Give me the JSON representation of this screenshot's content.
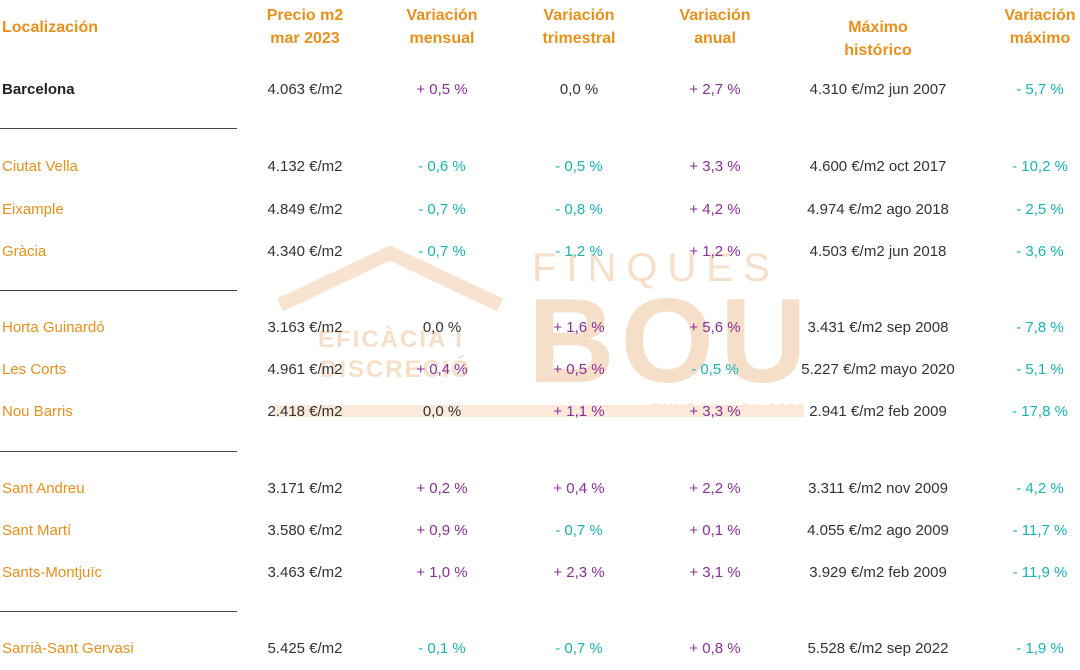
{
  "colors": {
    "accent": "#e8901a",
    "positive": "#8b2f97",
    "negative": "#18b3b3",
    "text": "#333333",
    "watermark": "#f6dfc8"
  },
  "watermark": {
    "line1": "FINQUES",
    "line2": "BOU",
    "line3": "EFICÀCIA I",
    "line4": "DISCRECIÓ",
    "line5": "FUNDADA EL 1990"
  },
  "headers": [
    "Localización",
    "Precio m2\nmar 2023",
    "Variación\nmensual",
    "Variación\ntrimestral",
    "Variación\nanual",
    "Máximo histórico",
    "Variación\nmáximo"
  ],
  "rows": [
    {
      "loc": "Barcelona",
      "price": "4.063 €/m2",
      "mensual": "+ 0,5 %",
      "trimestral": "0,0 %",
      "anual": "+ 2,7 %",
      "maximo": "4.310 €/m2 jun 2007",
      "var_max": "- 5,7 %"
    },
    {
      "loc": "Ciutat Vella",
      "price": "4.132 €/m2",
      "mensual": "- 0,6 %",
      "trimestral": "- 0,5 %",
      "anual": "+ 3,3 %",
      "maximo": "4.600 €/m2 oct 2017",
      "var_max": "- 10,2 %"
    },
    {
      "loc": "Eixample",
      "price": "4.849 €/m2",
      "mensual": "- 0,7 %",
      "trimestral": "- 0,8 %",
      "anual": "+ 4,2 %",
      "maximo": "4.974 €/m2 ago 2018",
      "var_max": "- 2,5 %"
    },
    {
      "loc": "Gràcia",
      "price": "4.340 €/m2",
      "mensual": "- 0,7 %",
      "trimestral": "- 1,2 %",
      "anual": "+ 1,2 %",
      "maximo": "4.503 €/m2 jun 2018",
      "var_max": "- 3,6 %"
    },
    {
      "loc": "Horta Guinardó",
      "price": "3.163 €/m2",
      "mensual": "0,0 %",
      "trimestral": "+ 1,6 %",
      "anual": "+ 5,6 %",
      "maximo": "3.431 €/m2 sep 2008",
      "var_max": "- 7,8 %"
    },
    {
      "loc": "Les Corts",
      "price": "4.961 €/m2",
      "mensual": "+ 0,4 %",
      "trimestral": "+ 0,5 %",
      "anual": "- 0,5 %",
      "maximo": "5.227 €/m2 mayo 2020",
      "var_max": "- 5,1 %"
    },
    {
      "loc": "Nou Barris",
      "price": "2.418 €/m2",
      "mensual": "0,0 %",
      "trimestral": "+ 1,1 %",
      "anual": "+ 3,3 %",
      "maximo": "2.941 €/m2 feb 2009",
      "var_max": "- 17,8 %"
    },
    {
      "loc": "Sant Andreu",
      "price": "3.171 €/m2",
      "mensual": "+ 0,2 %",
      "trimestral": "+ 0,4 %",
      "anual": "+ 2,2 %",
      "maximo": "3.311 €/m2 nov 2009",
      "var_max": "- 4,2 %"
    },
    {
      "loc": "Sant Martí",
      "price": "3.580 €/m2",
      "mensual": "+ 0,9 %",
      "trimestral": "- 0,7 %",
      "anual": "+ 0,1 %",
      "maximo": "4.055 €/m2 ago 2009",
      "var_max": "- 11,7 %"
    },
    {
      "loc": "Sants-Montjuïc",
      "price": "3.463 €/m2",
      "mensual": "+ 1,0 %",
      "trimestral": "+ 2,3 %",
      "anual": "+ 3,1 %",
      "maximo": "3.929 €/m2 feb 2009",
      "var_max": "- 11,9 %"
    },
    {
      "loc": "Sarrià-Sant Gervasi",
      "price": "5.425 €/m2",
      "mensual": "- 0,1 %",
      "trimestral": "- 0,7 %",
      "anual": "+ 0,8 %",
      "maximo": "5.528 €/m2 sep 2022",
      "var_max": "- 1,9 %"
    }
  ]
}
